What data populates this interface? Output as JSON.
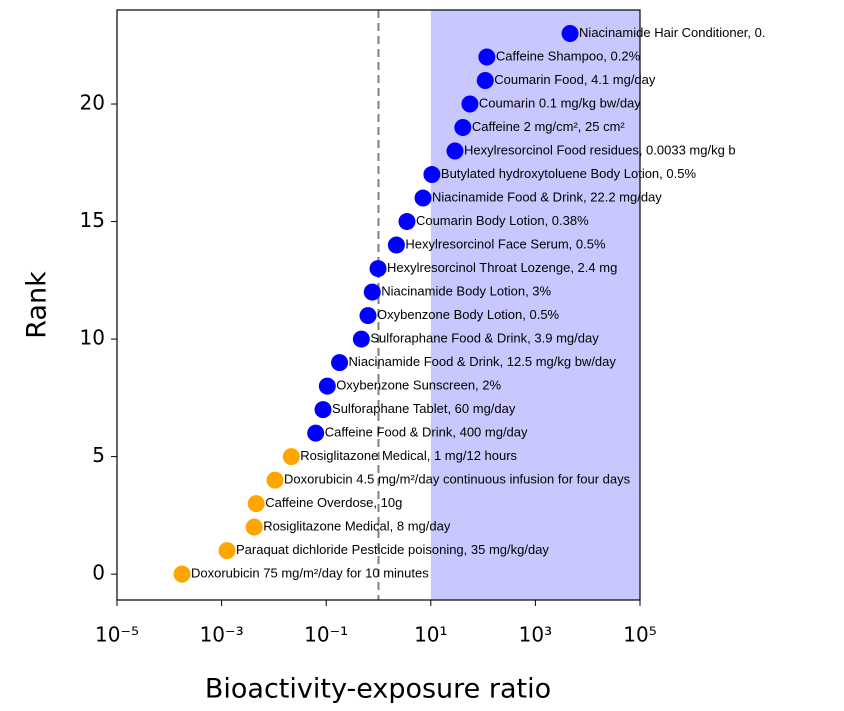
{
  "chart_data": {
    "type": "scatter",
    "xlabel": "Bioactivity-exposure ratio",
    "ylabel": "Rank",
    "xscale": "log",
    "xlim": [
      1e-05,
      100000
    ],
    "ylim": [
      -1.1,
      24.0
    ],
    "xticks": [
      {
        "value": 1e-05,
        "label": "10⁻⁵"
      },
      {
        "value": 0.001,
        "label": "10⁻³"
      },
      {
        "value": 0.1,
        "label": "10⁻¹"
      },
      {
        "value": 10,
        "label": "10¹"
      },
      {
        "value": 1000,
        "label": "10³"
      },
      {
        "value": 100000,
        "label": "10⁵"
      }
    ],
    "yticks": [
      0,
      5,
      10,
      15,
      20
    ],
    "reference_line_x": 1,
    "reference_line_color": "#808080",
    "shaded_xrange": [
      10,
      100000
    ],
    "shade_color": "#c8c8ff",
    "series": [
      {
        "x": [
          0.000175,
          0.00127,
          0.0042,
          0.0046,
          0.0105,
          0.0215,
          0.063,
          0.087,
          0.105,
          0.18,
          0.47,
          0.63,
          0.76,
          0.98,
          2.2,
          3.5,
          7.1,
          10.5,
          29,
          41,
          56,
          110,
          118,
          4600
        ],
        "y": [
          0,
          1,
          2,
          3,
          4,
          5,
          6,
          7,
          8,
          9,
          10,
          11,
          12,
          13,
          14,
          15,
          16,
          17,
          18,
          19,
          20,
          21,
          22,
          23
        ],
        "colors": [
          "#ffa500",
          "#ffa500",
          "#ffa500",
          "#ffa500",
          "#ffa500",
          "#ffa500",
          "#0000ff",
          "#0000ff",
          "#0000ff",
          "#0000ff",
          "#0000ff",
          "#0000ff",
          "#0000ff",
          "#0000ff",
          "#0000ff",
          "#0000ff",
          "#0000ff",
          "#0000ff",
          "#0000ff",
          "#0000ff",
          "#0000ff",
          "#0000ff",
          "#0000ff",
          "#0000ff"
        ],
        "labels": [
          "Doxorubicin 75 mg/m²/day for 10 minutes",
          "Paraquat dichloride Pesticide poisoning, 35 mg/kg/day",
          "Rosiglitazone Medical, 8 mg/day",
          "Caffeine Overdose, 10g",
          "Doxorubicin 4.5 mg/m²/day continuous infusion for four days",
          "Rosiglitazone Medical, 1 mg/12 hours",
          "Caffeine Food & Drink, 400 mg/day",
          "Sulforaphane Tablet, 60 mg/day",
          "Oxybenzone Sunscreen, 2%",
          "Niacinamide Food & Drink, 12.5 mg/kg bw/day",
          "Sulforaphane Food & Drink, 3.9 mg/day",
          "Oxybenzone Body Lotion, 0.5%",
          "Niacinamide Body Lotion, 3%",
          "Hexylresorcinol Throat Lozenge, 2.4 mg",
          "Hexylresorcinol Face Serum, 0.5%",
          "Coumarin Body Lotion, 0.38%",
          "Niacinamide Food & Drink, 22.2 mg/day",
          "Butylated hydroxytoluene Body Lotion, 0.5%",
          "Hexylresorcinol Food residues, 0.0033 mg/kg b",
          "Caffeine 2 mg/cm², 25 cm²",
          "Coumarin 0.1 mg/kg bw/day",
          "Coumarin Food, 4.1 mg/day",
          "Caffeine Shampoo, 0.2%",
          "Niacinamide Hair Conditioner, 0."
        ]
      }
    ]
  }
}
